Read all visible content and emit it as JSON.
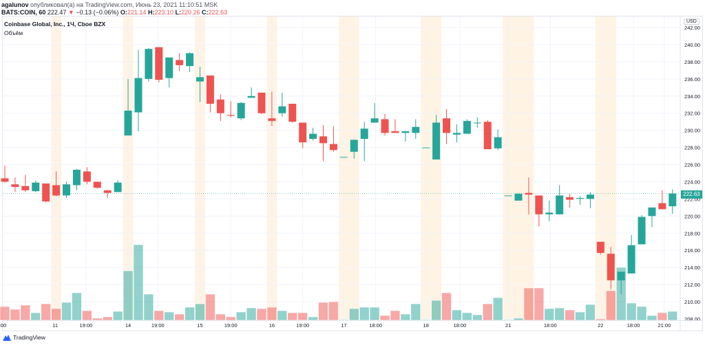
{
  "header": {
    "author": "agalunov",
    "published": "опубликовал(а) на TradingView.com, Июнь 23, 2021 11:10:51 MSK",
    "symbol": "BATS:COIN, 60",
    "last": "222.47",
    "change": "−0.13 (−0.06%)",
    "o_label": "O:",
    "o": "221.14",
    "h_label": "H:",
    "h": "223.10",
    "l_label": "L:",
    "l": "220.26",
    "c_label": "C:",
    "c": "222.63",
    "change_color": "#ef5350"
  },
  "legend": {
    "title": "Coinbase Global, Inc., 1Ч, Cboe BZX",
    "volume_label": "Объём"
  },
  "price_axis": {
    "currency": "USD",
    "last_price_label": "222.63",
    "last_price_color": "#26a69a"
  },
  "footer": {
    "brand": "TradingView"
  },
  "chart_data": {
    "type": "candlestick",
    "up_color": "#26a69a",
    "down_color": "#ef5350",
    "ylim": [
      208,
      242
    ],
    "y_ticks": [
      "242.00",
      "240.00",
      "238.00",
      "236.00",
      "234.00",
      "232.00",
      "230.00",
      "228.00",
      "226.00",
      "224.00",
      "222.00",
      "220.00",
      "218.00",
      "216.00",
      "214.00",
      "212.00",
      "210.00",
      "208.00"
    ],
    "x_ticks": [
      {
        "label": ":00",
        "bar": -0.2
      },
      {
        "label": "11",
        "bar": 4.9
      },
      {
        "label": "19:00",
        "bar": 7.9
      },
      {
        "label": "14",
        "bar": 12
      },
      {
        "label": "19:00",
        "bar": 14.9
      },
      {
        "label": "15",
        "bar": 19
      },
      {
        "label": "19:00",
        "bar": 22
      },
      {
        "label": "16",
        "bar": 26
      },
      {
        "label": "19:00",
        "bar": 29
      },
      {
        "label": "17",
        "bar": 33
      },
      {
        "label": "18:00",
        "bar": 36.1
      },
      {
        "label": "18",
        "bar": 41
      },
      {
        "label": "18:00",
        "bar": 44.3
      },
      {
        "label": "21",
        "bar": 49
      },
      {
        "label": "18:00",
        "bar": 53.1
      },
      {
        "label": "22",
        "bar": 58
      },
      {
        "label": "18:00",
        "bar": 61.2
      },
      {
        "label": "21:00",
        "bar": 64.2
      }
    ],
    "extended_hours_bars": [
      [
        5,
        5
      ],
      [
        12,
        12
      ],
      [
        19,
        19
      ],
      [
        26,
        26
      ],
      [
        33,
        34
      ],
      [
        41,
        42
      ],
      [
        49,
        51
      ],
      [
        58,
        59
      ]
    ],
    "grid": true,
    "last_price": 222.63,
    "ohlc": [
      [
        224.4,
        225.9,
        223.9,
        224.0
      ],
      [
        223.7,
        224.5,
        222.8,
        223.4
      ],
      [
        223.5,
        224.8,
        222.8,
        223.0
      ],
      [
        222.9,
        224.1,
        222.8,
        223.9
      ],
      [
        223.8,
        223.8,
        221.6,
        221.7
      ],
      [
        223.6,
        225.2,
        222.3,
        222.4
      ],
      [
        222.4,
        224.0,
        222.1,
        223.7
      ],
      [
        223.6,
        225.5,
        223.0,
        225.4
      ],
      [
        225.2,
        225.7,
        223.7,
        224.0
      ],
      [
        224.0,
        224.0,
        223.2,
        223.3
      ],
      [
        223.0,
        223.0,
        222.1,
        222.7
      ],
      [
        222.8,
        224.2,
        222.8,
        223.9
      ],
      [
        229.4,
        236.0,
        229.4,
        232.3
      ],
      [
        232.1,
        239.4,
        229.9,
        236.1
      ],
      [
        236.0,
        239.6,
        235.7,
        239.5
      ],
      [
        239.7,
        239.7,
        235.6,
        235.9
      ],
      [
        236.1,
        238.5,
        235.0,
        238.5
      ],
      [
        238.2,
        239.0,
        236.9,
        237.6
      ],
      [
        237.5,
        239.1,
        236.8,
        239.0
      ],
      [
        235.7,
        237.4,
        233.3,
        236.2
      ],
      [
        236.4,
        236.4,
        232.1,
        233.1
      ],
      [
        233.6,
        234.2,
        231.1,
        232.0
      ],
      [
        231.8,
        233.4,
        231.5,
        231.7
      ],
      [
        231.4,
        233.3,
        231.2,
        233.2
      ],
      [
        233.8,
        235.0,
        233.8,
        234.0
      ],
      [
        234.4,
        234.4,
        231.9,
        232.0
      ],
      [
        231.4,
        234.5,
        230.5,
        231.1
      ],
      [
        232.0,
        234.4,
        231.6,
        232.8
      ],
      [
        233.1,
        233.1,
        230.9,
        231.0
      ],
      [
        230.9,
        230.9,
        227.9,
        228.6
      ],
      [
        229.0,
        230.3,
        228.8,
        229.6
      ],
      [
        229.3,
        230.6,
        226.4,
        228.5
      ],
      [
        228.4,
        230.5,
        227.5,
        227.7
      ],
      [
        226.9,
        226.9,
        226.9,
        226.9
      ],
      [
        227.5,
        228.9,
        226.7,
        228.9
      ],
      [
        229.0,
        231.0,
        226.4,
        230.2
      ],
      [
        230.9,
        233.2,
        230.9,
        231.4
      ],
      [
        231.3,
        231.9,
        229.4,
        229.7
      ],
      [
        229.9,
        231.3,
        229.7,
        229.7
      ],
      [
        229.7,
        229.9,
        228.7,
        229.9
      ],
      [
        229.7,
        231.3,
        229.0,
        230.4
      ],
      [
        228.0,
        228.0,
        228.0,
        228.0
      ],
      [
        226.6,
        231.8,
        226.6,
        230.9
      ],
      [
        231.4,
        232.5,
        228.4,
        229.7
      ],
      [
        229.5,
        230.7,
        228.6,
        229.7
      ],
      [
        229.6,
        231.3,
        229.6,
        231.1
      ],
      [
        230.9,
        231.5,
        230.3,
        230.9
      ],
      [
        231.0,
        231.2,
        227.8,
        227.8
      ],
      [
        227.9,
        230.1,
        227.7,
        229.2
      ],
      [
        222.4,
        222.4,
        222.4,
        222.4
      ],
      [
        221.8,
        222.6,
        221.8,
        222.6
      ],
      [
        222.7,
        224.5,
        220.2,
        222.5
      ],
      [
        222.4,
        222.4,
        218.8,
        220.2
      ],
      [
        220.2,
        221.8,
        219.4,
        220.4
      ],
      [
        220.2,
        223.6,
        220.2,
        222.4
      ],
      [
        222.2,
        222.6,
        221.0,
        221.9
      ],
      [
        222.0,
        222.3,
        221.3,
        222.1
      ],
      [
        222.0,
        222.8,
        220.9,
        222.5
      ],
      [
        217.0,
        217.0,
        215.5,
        215.7
      ],
      [
        215.6,
        216.4,
        211.5,
        212.5
      ],
      [
        212.5,
        213.5,
        210.9,
        213.5
      ],
      [
        213.3,
        217.8,
        213.3,
        216.6
      ],
      [
        216.7,
        220.1,
        216.7,
        219.9
      ],
      [
        220.0,
        221.0,
        218.7,
        221.0
      ],
      [
        221.5,
        223.0,
        220.8,
        220.8
      ],
      [
        221.14,
        223.1,
        220.26,
        222.63
      ]
    ],
    "volume_relative": [
      20,
      16,
      22,
      11,
      24,
      17,
      26,
      40,
      14,
      3,
      5,
      13,
      72,
      110,
      38,
      14,
      12,
      9,
      19,
      24,
      38,
      9,
      5,
      12,
      18,
      17,
      19,
      14,
      11,
      11,
      5,
      26,
      27,
      1,
      17,
      19,
      19,
      7,
      14,
      9,
      24,
      1,
      29,
      40,
      15,
      11,
      8,
      24,
      33,
      1,
      3,
      47,
      47,
      17,
      18,
      15,
      12,
      23,
      2,
      43,
      77,
      25,
      20,
      7,
      11,
      13
    ]
  }
}
